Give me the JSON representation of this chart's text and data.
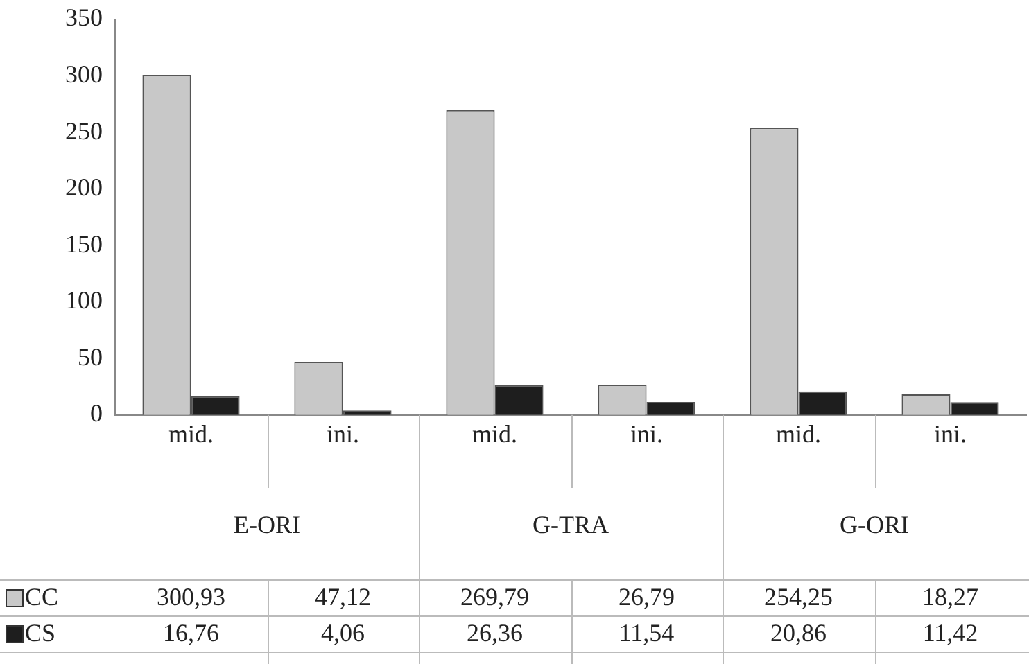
{
  "chart_data": {
    "type": "bar",
    "categories": [
      "mid.",
      "ini.",
      "mid.",
      "ini.",
      "mid.",
      "ini."
    ],
    "annotations": [
      "E-ORI",
      "G-TRA",
      "G-ORI"
    ],
    "series": [
      {
        "name": "CC",
        "color": "#c8c8c8",
        "values": [
          300.93,
          47.12,
          269.79,
          26.79,
          254.25,
          18.27
        ],
        "value_labels": [
          "300,93",
          "47,12",
          "269,79",
          "26,79",
          "254,25",
          "18,27"
        ]
      },
      {
        "name": "CS",
        "color": "#1e1e1e",
        "values": [
          16.76,
          4.06,
          26.36,
          11.54,
          20.86,
          11.42
        ],
        "value_labels": [
          "16,76",
          "4,06",
          "26,36",
          "11,54",
          "20,86",
          "11,42"
        ]
      }
    ],
    "ylim": [
      0,
      350
    ],
    "yticks": [
      0,
      50,
      100,
      150,
      200,
      250,
      300,
      350
    ],
    "grid": false,
    "legend": "bottom"
  }
}
